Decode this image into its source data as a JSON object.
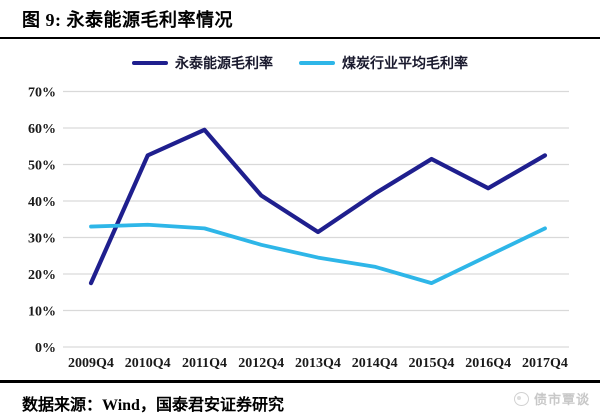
{
  "header": {
    "title": "图 9: 永泰能源毛利率情况"
  },
  "chart_data": {
    "type": "line",
    "title": "永泰能源毛利率情况",
    "categories": [
      "2009Q4",
      "2010Q4",
      "2011Q4",
      "2012Q4",
      "2013Q4",
      "2014Q4",
      "2015Q4",
      "2016Q4",
      "2017Q4"
    ],
    "series": [
      {
        "name": "永泰能源毛利率",
        "color": "#1F1F8E",
        "values": [
          17.5,
          52.5,
          59.5,
          41.5,
          31.5,
          42,
          51.5,
          43.5,
          52.5
        ]
      },
      {
        "name": "煤炭行业平均毛利率",
        "color": "#2EB6E8",
        "values": [
          33,
          33.5,
          32.5,
          28,
          24.5,
          22,
          17.5,
          25,
          32.5
        ]
      }
    ],
    "xlabel": "",
    "ylabel": "",
    "ylim": [
      0,
      70
    ],
    "ytick_step": 10,
    "ytick_suffix": "%",
    "ytick_labels": [
      "0%",
      "10%",
      "20%",
      "30%",
      "40%",
      "50%",
      "60%",
      "70%"
    ],
    "grid": true,
    "gridline_color": "#D9D9D9",
    "legend_position": "top"
  },
  "footer": {
    "source": "数据来源：Wind，国泰君安证券研究",
    "watermark": "债市覃谈"
  }
}
